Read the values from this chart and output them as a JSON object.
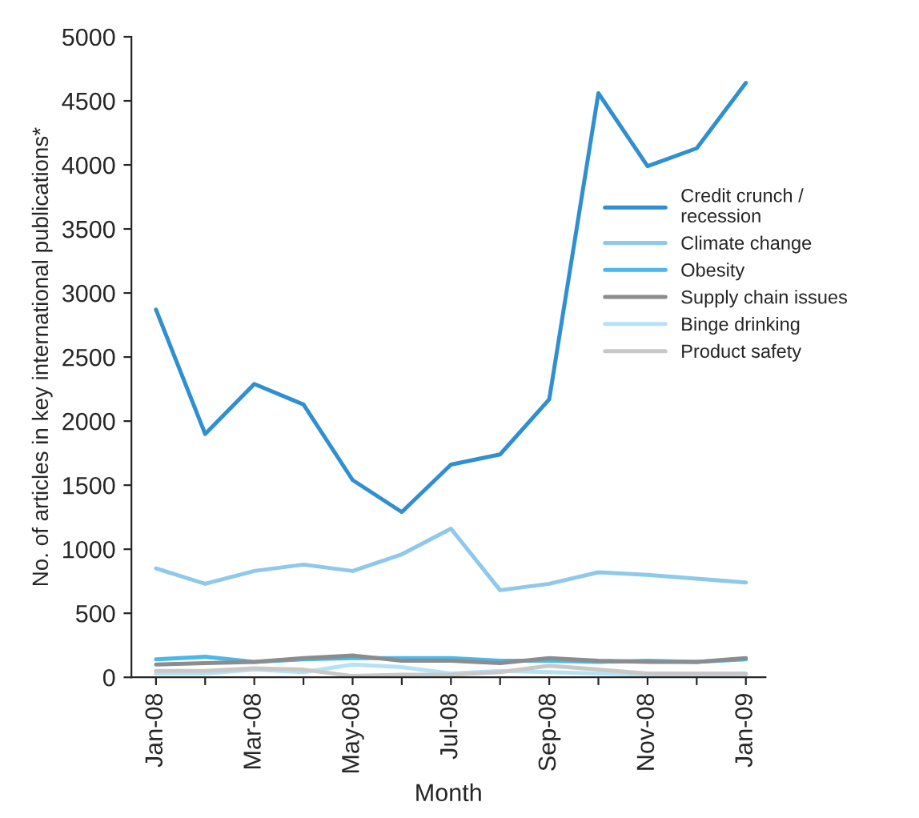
{
  "chart_data": {
    "type": "line",
    "xlabel": "Month",
    "ylabel": "No. of articles in key international publications*",
    "categories": [
      "Jan-08",
      null,
      "Mar-08",
      null,
      "May-08",
      null,
      "Jul-08",
      null,
      "Sep-08",
      null,
      "Nov-08",
      null,
      "Jan-09"
    ],
    "series": [
      {
        "name": "Credit crunch / recession",
        "color": "#2f8fd0",
        "values": [
          2870,
          1900,
          2290,
          2130,
          1540,
          1290,
          1660,
          1740,
          2170,
          4560,
          3990,
          4130,
          4640
        ]
      },
      {
        "name": "Climate change",
        "color": "#8ec8ea",
        "values": [
          850,
          730,
          830,
          880,
          830,
          960,
          1160,
          680,
          730,
          820,
          800,
          770,
          740
        ]
      },
      {
        "name": "Obesity",
        "color": "#4ab8e8",
        "values": [
          140,
          160,
          120,
          140,
          150,
          150,
          150,
          130,
          130,
          120,
          130,
          120,
          140
        ]
      },
      {
        "name": "Supply chain issues",
        "color": "#8a8c8e",
        "values": [
          100,
          110,
          120,
          150,
          170,
          130,
          130,
          110,
          150,
          130,
          120,
          120,
          150
        ]
      },
      {
        "name": "Binge drinking",
        "color": "#b5e1f5",
        "values": [
          30,
          30,
          60,
          40,
          100,
          80,
          30,
          50,
          40,
          30,
          20,
          20,
          20
        ]
      },
      {
        "name": "Product safety",
        "color": "#c8c8c8",
        "values": [
          50,
          50,
          70,
          60,
          10,
          20,
          20,
          40,
          90,
          60,
          30,
          30,
          30
        ]
      }
    ],
    "ylim": [
      0,
      5000
    ],
    "yticks": [
      0,
      500,
      1000,
      1500,
      2000,
      2500,
      3000,
      3500,
      4000,
      4500,
      5000
    ],
    "grid": false,
    "legend": "right",
    "marker": "none",
    "line_style": "solid"
  }
}
